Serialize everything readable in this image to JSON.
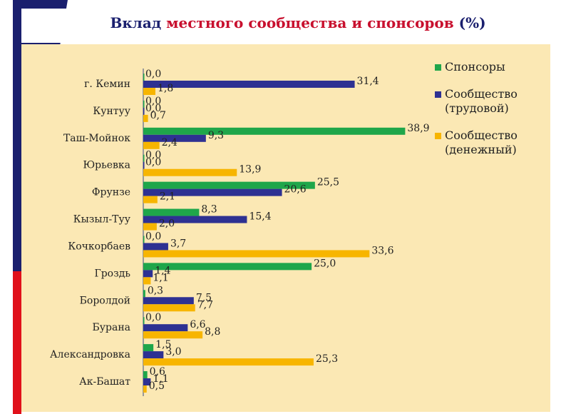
{
  "chart_data": {
    "type": "hbar",
    "title": [
      "Вклад",
      "местного сообщества и спонсоров",
      "(%)"
    ],
    "categories": [
      "г. Кемин",
      "Кунтуу",
      "Таш-Мойнок",
      "Юрьевка",
      "Фрунзе",
      "Кызыл-Туу",
      "Кочкорбаев",
      "Гроздь",
      "Боролдой",
      "Бурана",
      "Александровка",
      "Ак-Башат"
    ],
    "series": [
      {
        "name": "Спонсоры",
        "color": "#1fa64a",
        "values": [
          0.0,
          0.0,
          38.9,
          0.0,
          25.5,
          8.3,
          0.0,
          25.0,
          0.3,
          0.0,
          1.5,
          0.6
        ],
        "value_labels": [
          "0,0",
          "0,0",
          "38,9",
          "0,0",
          "25,5",
          "8,3",
          "0,0",
          "25,0",
          "0,3",
          "0,0",
          "1,5",
          "0,6"
        ]
      },
      {
        "name": "Сообщество (трудовой)",
        "color": "#2e3192",
        "values": [
          31.4,
          0.0,
          9.3,
          0.0,
          20.6,
          15.4,
          3.7,
          1.4,
          7.5,
          6.6,
          3.0,
          1.1
        ],
        "value_labels": [
          "31,4",
          "0,0",
          "9,3",
          "0,0",
          "20,6",
          "15,4",
          "3,7",
          "1,4",
          "7,5",
          "6,6",
          "3,0",
          "1,1"
        ]
      },
      {
        "name": "Сообщество (денежный)",
        "color": "#f7b500",
        "values": [
          1.8,
          0.7,
          2.4,
          13.9,
          2.1,
          2.0,
          33.6,
          1.1,
          7.7,
          8.8,
          25.3,
          0.5
        ],
        "value_labels": [
          "1,8",
          "0,7",
          "2,4",
          "13,9",
          "2,1",
          "2,0",
          "33,6",
          "1,1",
          "7,7",
          "8,8",
          "25,3",
          "0,5"
        ]
      }
    ],
    "xlim": [
      0,
      45
    ]
  }
}
